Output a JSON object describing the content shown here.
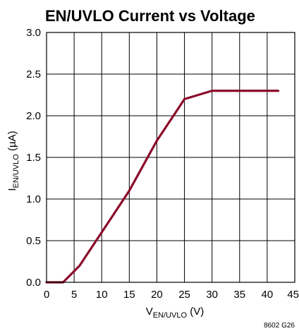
{
  "chart_data": {
    "type": "line",
    "title": "EN/UVLO Current vs Voltage",
    "xlabel": {
      "main": "V",
      "sub": "EN/UVLO",
      "unit": " (V)"
    },
    "ylabel": {
      "main": "I",
      "sub": "EN/UVLO",
      "unit": " (µA)"
    },
    "xlim": [
      0,
      45
    ],
    "ylim": [
      0,
      3.0
    ],
    "xticks": [
      "0",
      "5",
      "10",
      "15",
      "20",
      "25",
      "30",
      "35",
      "40",
      "45"
    ],
    "yticks": [
      "0.0",
      "0.5",
      "1.0",
      "1.5",
      "2.0",
      "2.5",
      "3.0"
    ],
    "grid": true,
    "series": [
      {
        "color": "#8b0a2a",
        "x": [
          0,
          3,
          6,
          10,
          15,
          20,
          25,
          30,
          42
        ],
        "y": [
          0.0,
          0.0,
          0.2,
          0.6,
          1.1,
          1.7,
          2.2,
          2.3,
          2.3
        ]
      }
    ],
    "figure_code": "8602 G26"
  }
}
